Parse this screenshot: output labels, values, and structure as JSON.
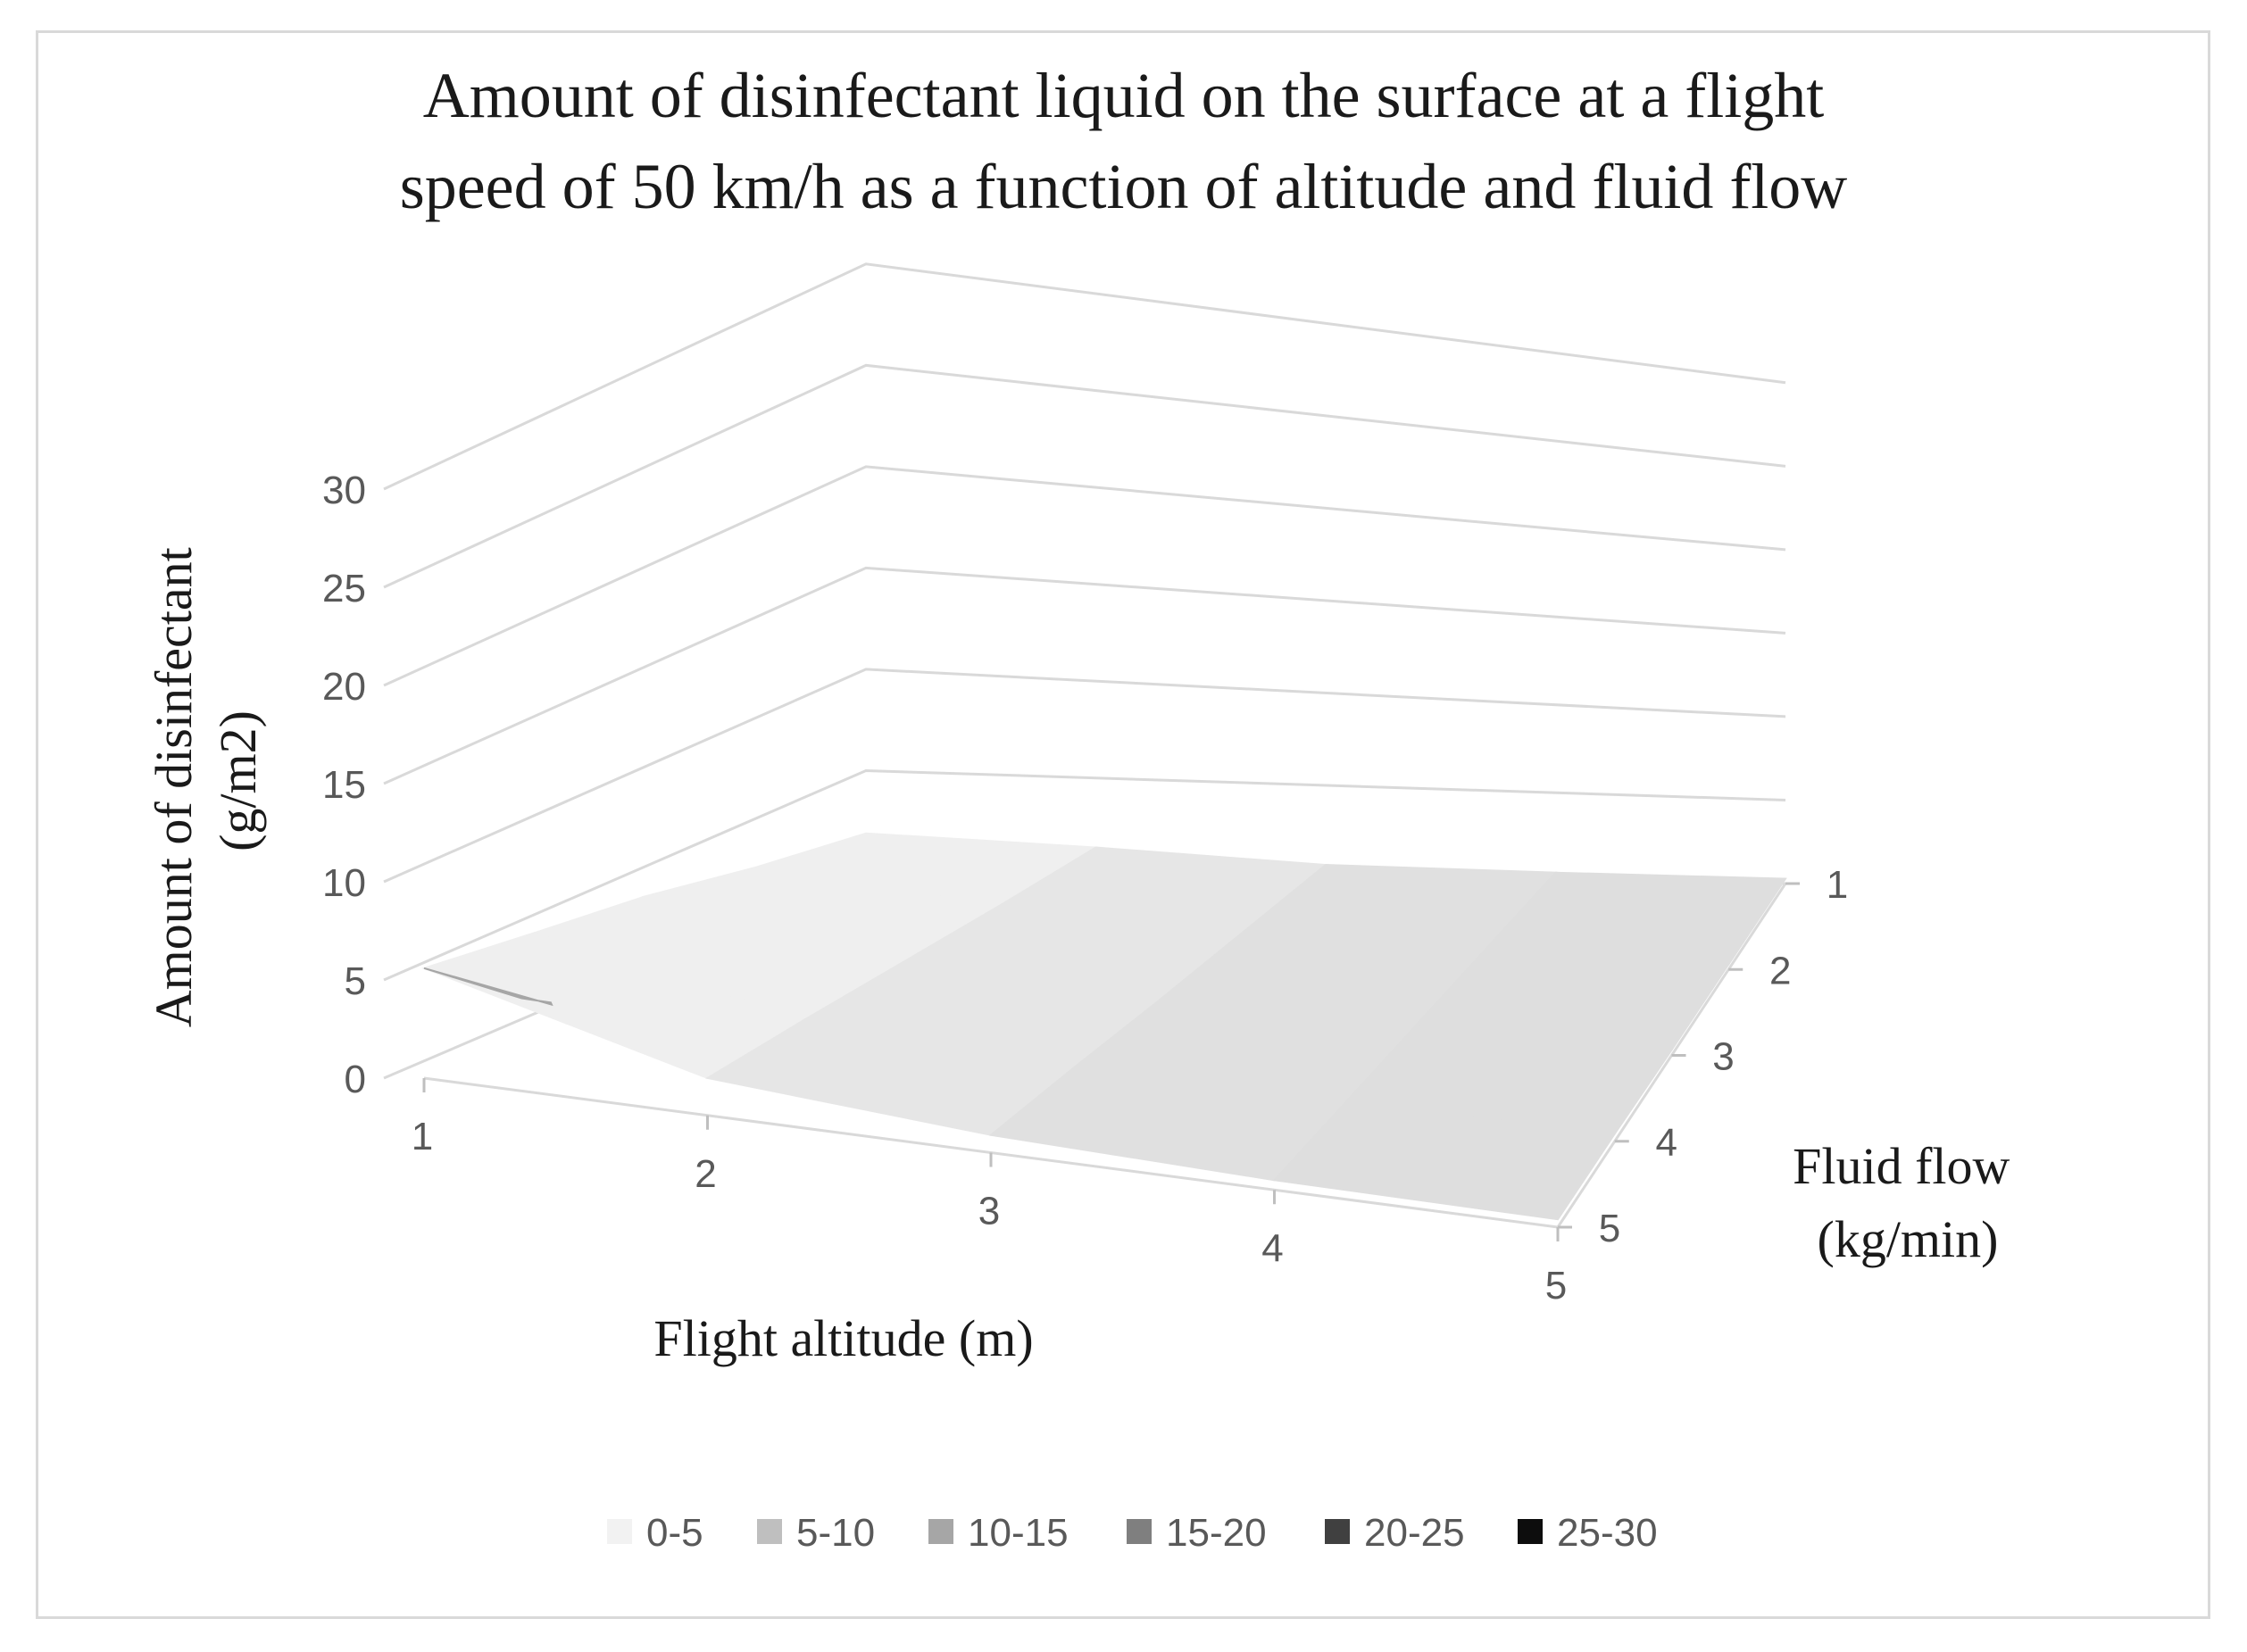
{
  "chart_data": {
    "type": "surface",
    "title_lines": [
      "Amount of disinfectant liquid on the surface at a flight",
      "speed of 50 km/h as a function of altitude and fluid flow"
    ],
    "xlabel": "Flight altitude (m)",
    "ylabel_lines": [
      "Amount of disinfectant",
      "(g/m2)"
    ],
    "zlabel_lines": [
      "Fluid flow",
      "(kg/min)"
    ],
    "x": [
      1,
      2,
      3,
      4,
      5
    ],
    "x_tick_labels": [
      "1",
      "2",
      "3",
      "4",
      "5"
    ],
    "depth": [
      1,
      2,
      3,
      4,
      5
    ],
    "depth_tick_labels": [
      "1",
      "2",
      "3",
      "4",
      "5"
    ],
    "z_tick_labels": [
      "0",
      "5",
      "10",
      "15",
      "20",
      "25",
      "30"
    ],
    "zlim": [
      0,
      30
    ],
    "grid": true,
    "surface_values": [
      [
        5.6,
        1.9,
        0.9,
        0.5,
        0.4
      ],
      [
        5.0,
        1.9,
        0.9,
        0.5,
        0.4
      ],
      [
        4.4,
        1.8,
        0.8,
        0.5,
        0.3
      ],
      [
        3.3,
        1.7,
        0.8,
        0.5,
        0.3
      ],
      [
        2.4,
        1.7,
        0.8,
        0.5,
        0.3
      ]
    ],
    "legend": {
      "placement": "bottom",
      "entries": [
        {
          "label": "0-5",
          "color": "#f2f2f2"
        },
        {
          "label": "5-10",
          "color": "#bfbfbf"
        },
        {
          "label": "10-15",
          "color": "#a6a6a6"
        },
        {
          "label": "15-20",
          "color": "#7f7f7f"
        },
        {
          "label": "20-25",
          "color": "#404040"
        },
        {
          "label": "25-30",
          "color": "#0d0d0d"
        }
      ]
    }
  }
}
